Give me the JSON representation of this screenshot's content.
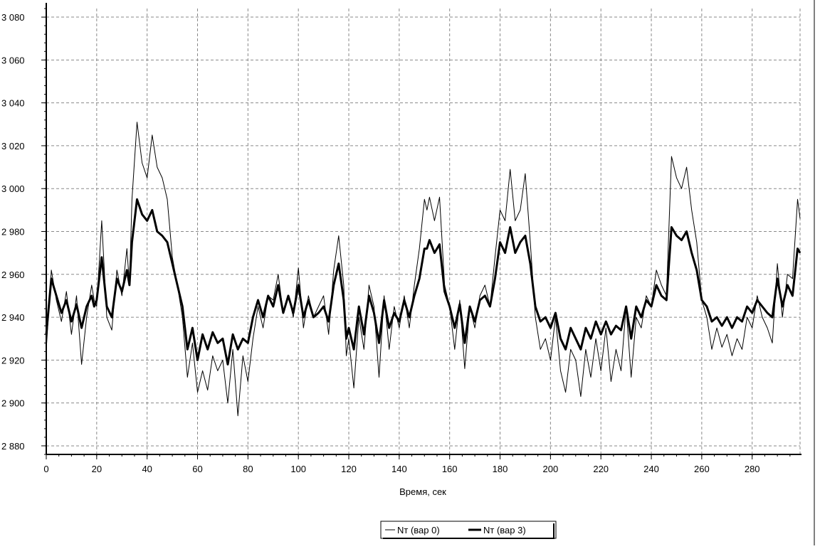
{
  "chart_data": {
    "type": "line",
    "xlabel": "Время, сек",
    "ylabel": "",
    "title": "",
    "xlim": [
      0,
      299
    ],
    "ylim": [
      2876,
      3084
    ],
    "x_ticks": [
      0,
      20,
      40,
      60,
      80,
      100,
      120,
      140,
      160,
      180,
      200,
      220,
      240,
      260,
      280
    ],
    "x_tick_labels": [
      "0",
      "20",
      "40",
      "60",
      "80",
      "100",
      "120",
      "140",
      "160",
      "180",
      "200",
      "220",
      "240",
      "260",
      "280"
    ],
    "y_ticks": [
      2880,
      2900,
      2920,
      2940,
      2960,
      2980,
      3000,
      3020,
      3040,
      3060,
      3080
    ],
    "y_tick_labels": [
      "2 880",
      "2 900",
      "2 920",
      "2 940",
      "2 960",
      "2 980",
      "3 000",
      "3 020",
      "3 040",
      "3 060",
      "3 080"
    ],
    "grid": true,
    "legend_position": "bottom-center",
    "series_colors": [
      "#000000",
      "#000000"
    ],
    "series": [
      {
        "name": "Nт (вар 0)",
        "style": "thin",
        "x": [
          0,
          2,
          4,
          6,
          8,
          10,
          12,
          14,
          16,
          18,
          19,
          20,
          22,
          24,
          26,
          28,
          30,
          32,
          33,
          34,
          36,
          38,
          40,
          42,
          44,
          46,
          48,
          50,
          52,
          54,
          56,
          58,
          60,
          62,
          64,
          66,
          68,
          70,
          72,
          74,
          76,
          78,
          80,
          82,
          84,
          86,
          88,
          90,
          92,
          94,
          96,
          98,
          100,
          102,
          104,
          106,
          108,
          110,
          112,
          114,
          116,
          118,
          119,
          120,
          122,
          124,
          126,
          128,
          130,
          132,
          134,
          136,
          138,
          140,
          142,
          144,
          146,
          148,
          150,
          151,
          152,
          154,
          156,
          158,
          160,
          162,
          164,
          166,
          168,
          170,
          172,
          174,
          176,
          178,
          180,
          182,
          184,
          186,
          188,
          190,
          192,
          194,
          196,
          198,
          200,
          202,
          204,
          206,
          208,
          210,
          212,
          214,
          216,
          218,
          220,
          222,
          224,
          226,
          228,
          230,
          232,
          234,
          236,
          238,
          240,
          242,
          244,
          246,
          248,
          250,
          252,
          254,
          256,
          258,
          260,
          262,
          264,
          266,
          268,
          270,
          272,
          274,
          276,
          278,
          280,
          282,
          284,
          286,
          288,
          290,
          292,
          294,
          296,
          298,
          299
        ],
        "values": [
          2925,
          2962,
          2948,
          2938,
          2952,
          2932,
          2950,
          2918,
          2940,
          2955,
          2948,
          2945,
          2985,
          2940,
          2934,
          2962,
          2950,
          2972,
          2955,
          2995,
          3031,
          3012,
          3005,
          3025,
          3010,
          3005,
          2995,
          2968,
          2955,
          2940,
          2912,
          2928,
          2905,
          2915,
          2906,
          2922,
          2915,
          2920,
          2900,
          2925,
          2894,
          2922,
          2910,
          2930,
          2945,
          2935,
          2950,
          2948,
          2960,
          2942,
          2950,
          2940,
          2963,
          2935,
          2950,
          2940,
          2945,
          2950,
          2932,
          2962,
          2978,
          2955,
          2922,
          2930,
          2907,
          2940,
          2925,
          2955,
          2945,
          2912,
          2950,
          2925,
          2945,
          2935,
          2950,
          2935,
          2955,
          2972,
          2995,
          2990,
          2996,
          2985,
          2996,
          2955,
          2945,
          2925,
          2948,
          2916,
          2945,
          2935,
          2950,
          2955,
          2945,
          2968,
          2990,
          2985,
          3009,
          2985,
          2990,
          3007,
          2975,
          2940,
          2925,
          2930,
          2920,
          2940,
          2915,
          2905,
          2925,
          2920,
          2903,
          2925,
          2912,
          2930,
          2915,
          2935,
          2910,
          2925,
          2915,
          2945,
          2912,
          2940,
          2935,
          2950,
          2945,
          2962,
          2955,
          2950,
          3015,
          3005,
          3000,
          3010,
          2990,
          2975,
          2948,
          2940,
          2925,
          2935,
          2926,
          2932,
          2922,
          2930,
          2925,
          2940,
          2935,
          2950,
          2940,
          2935,
          2928,
          2965,
          2940,
          2960,
          2958,
          2995,
          2986
        ],
        "x_tail": []
      },
      {
        "name": "Nт (вар 3)",
        "style": "thick",
        "x": [
          0,
          2,
          4,
          6,
          8,
          10,
          12,
          14,
          16,
          18,
          19,
          20,
          22,
          24,
          26,
          28,
          30,
          32,
          33,
          34,
          36,
          38,
          40,
          42,
          44,
          46,
          48,
          50,
          52,
          54,
          56,
          58,
          60,
          62,
          64,
          66,
          68,
          70,
          72,
          74,
          76,
          78,
          80,
          82,
          84,
          86,
          88,
          90,
          92,
          94,
          96,
          98,
          100,
          102,
          104,
          106,
          108,
          110,
          112,
          114,
          116,
          118,
          119,
          120,
          122,
          124,
          126,
          128,
          130,
          132,
          134,
          136,
          138,
          140,
          142,
          144,
          146,
          148,
          150,
          151,
          152,
          154,
          156,
          158,
          160,
          162,
          164,
          166,
          168,
          170,
          172,
          174,
          176,
          178,
          180,
          182,
          184,
          186,
          188,
          190,
          192,
          194,
          196,
          198,
          200,
          202,
          204,
          206,
          208,
          210,
          212,
          214,
          216,
          218,
          220,
          222,
          224,
          226,
          228,
          230,
          232,
          234,
          236,
          238,
          240,
          242,
          244,
          246,
          248,
          250,
          252,
          254,
          256,
          258,
          260,
          262,
          264,
          266,
          268,
          270,
          272,
          274,
          276,
          278,
          280,
          282,
          284,
          286,
          288,
          290,
          292,
          294,
          296,
          298,
          299
        ],
        "values": [
          2932,
          2958,
          2950,
          2942,
          2948,
          2938,
          2946,
          2935,
          2945,
          2950,
          2945,
          2948,
          2968,
          2945,
          2940,
          2958,
          2952,
          2962,
          2955,
          2975,
          2995,
          2988,
          2985,
          2990,
          2980,
          2978,
          2975,
          2965,
          2955,
          2945,
          2925,
          2935,
          2920,
          2932,
          2925,
          2933,
          2928,
          2930,
          2918,
          2932,
          2925,
          2930,
          2928,
          2940,
          2948,
          2940,
          2950,
          2945,
          2955,
          2942,
          2950,
          2942,
          2955,
          2940,
          2948,
          2940,
          2942,
          2945,
          2938,
          2955,
          2965,
          2948,
          2930,
          2935,
          2925,
          2945,
          2932,
          2950,
          2942,
          2928,
          2948,
          2935,
          2942,
          2938,
          2948,
          2940,
          2950,
          2958,
          2972,
          2972,
          2976,
          2970,
          2974,
          2952,
          2945,
          2935,
          2946,
          2928,
          2945,
          2938,
          2948,
          2950,
          2945,
          2958,
          2975,
          2970,
          2982,
          2970,
          2975,
          2978,
          2965,
          2945,
          2938,
          2940,
          2935,
          2942,
          2930,
          2925,
          2935,
          2930,
          2925,
          2935,
          2930,
          2938,
          2932,
          2938,
          2932,
          2936,
          2934,
          2945,
          2930,
          2945,
          2940,
          2948,
          2945,
          2955,
          2950,
          2948,
          2982,
          2978,
          2976,
          2980,
          2970,
          2962,
          2948,
          2945,
          2938,
          2940,
          2936,
          2940,
          2935,
          2940,
          2938,
          2945,
          2942,
          2948,
          2945,
          2942,
          2940,
          2958,
          2945,
          2955,
          2950,
          2972,
          2970
        ],
        "x_tail": []
      }
    ]
  }
}
